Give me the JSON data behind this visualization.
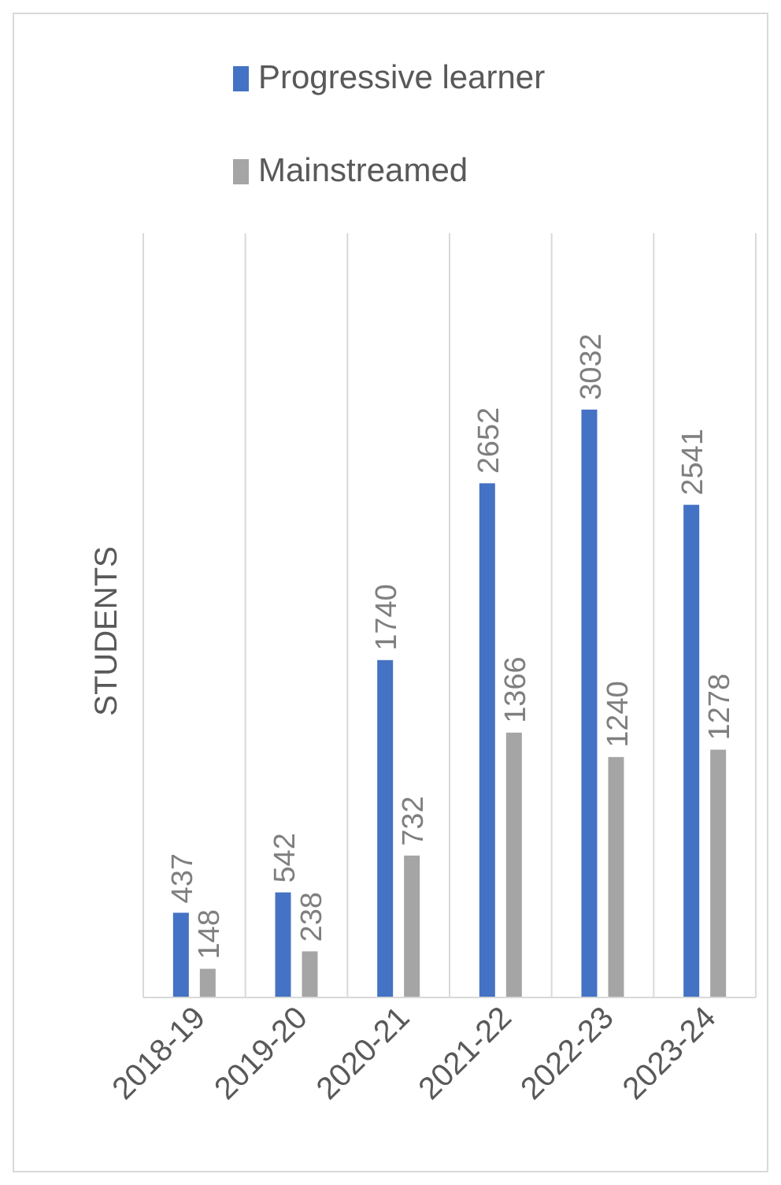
{
  "chart_data": {
    "type": "bar",
    "ylabel": "STUDENTS",
    "categories": [
      "2018-19",
      "2019-20",
      "2020-21",
      "2021-22",
      "2022-23",
      "2023-24"
    ],
    "series": [
      {
        "name": "Progressive learner",
        "color": "#4472c4",
        "values": [
          437,
          542,
          1740,
          2652,
          3032,
          2541
        ]
      },
      {
        "name": "Mainstreamed",
        "color": "#a5a5a5",
        "values": [
          148,
          238,
          732,
          1366,
          1240,
          1278
        ]
      }
    ],
    "data_labels": true,
    "grid": "x",
    "legend": "top"
  }
}
